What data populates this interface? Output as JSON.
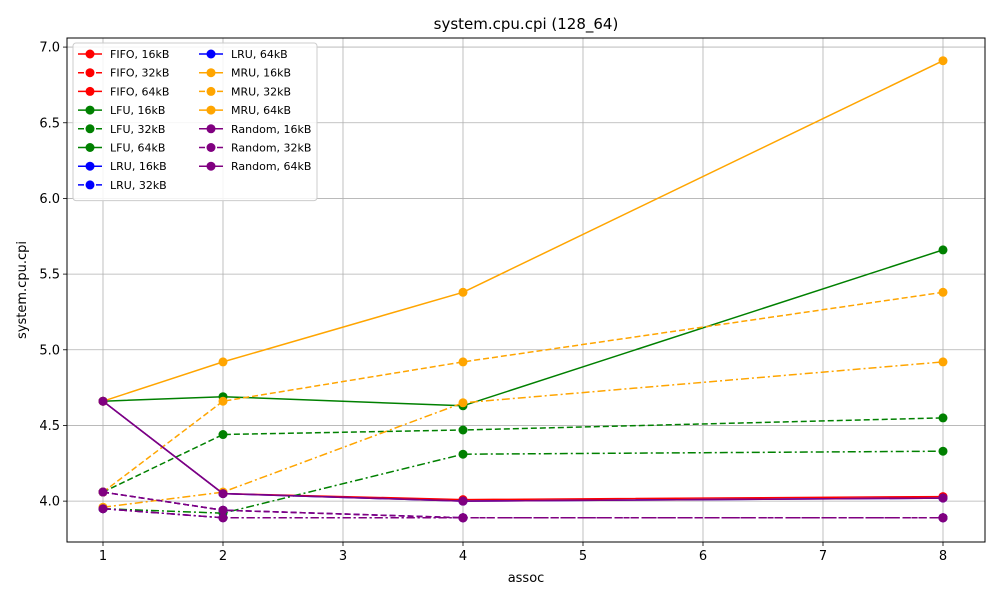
{
  "chart_data": {
    "type": "line",
    "title": "system.cpu.cpi (128_64)",
    "xlabel": "assoc",
    "ylabel": "system.cpu.cpi",
    "xlim": [
      0.7,
      8.35
    ],
    "ylim": [
      3.73,
      7.06
    ],
    "xticks": [
      1,
      2,
      3,
      4,
      5,
      6,
      7,
      8
    ],
    "yticks": [
      4.0,
      4.5,
      5.0,
      5.5,
      6.0,
      6.5,
      7.0
    ],
    "ytick_labels": [
      "4.0",
      "4.5",
      "5.0",
      "5.5",
      "6.0",
      "6.5",
      "7.0"
    ],
    "grid": true,
    "legend_position": "top-left",
    "legend_columns": 2,
    "x": [
      1,
      2,
      4,
      8
    ],
    "series": [
      {
        "name": "FIFO, 16kB",
        "color": "#ff0000",
        "dash": "solid",
        "values": [
          4.66,
          4.05,
          4.01,
          4.03
        ]
      },
      {
        "name": "FIFO, 32kB",
        "color": "#ff0000",
        "dash": "dashed",
        "values": [
          4.06,
          3.94,
          3.89,
          3.89
        ]
      },
      {
        "name": "FIFO, 64kB",
        "color": "#ff0000",
        "dash": "dashdot",
        "values": [
          3.95,
          3.89,
          3.89,
          3.89
        ]
      },
      {
        "name": "LFU, 16kB",
        "color": "#008000",
        "dash": "solid",
        "values": [
          4.66,
          4.69,
          4.63,
          5.66
        ]
      },
      {
        "name": "LFU, 32kB",
        "color": "#008000",
        "dash": "dashed",
        "values": [
          4.06,
          4.44,
          4.47,
          4.55
        ]
      },
      {
        "name": "LFU, 64kB",
        "color": "#008000",
        "dash": "dashdot",
        "values": [
          3.95,
          3.92,
          4.31,
          4.33
        ]
      },
      {
        "name": "LRU, 16kB",
        "color": "#0000ff",
        "dash": "solid",
        "values": [
          4.66,
          4.05,
          4.0,
          4.02
        ]
      },
      {
        "name": "LRU, 32kB",
        "color": "#0000ff",
        "dash": "dashed",
        "values": [
          4.06,
          3.94,
          3.89,
          3.89
        ]
      },
      {
        "name": "LRU, 64kB",
        "color": "#0000ff",
        "dash": "dashdot",
        "values": [
          3.95,
          3.89,
          3.89,
          3.89
        ]
      },
      {
        "name": "MRU, 16kB",
        "color": "#ffa500",
        "dash": "solid",
        "values": [
          4.66,
          4.92,
          5.38,
          6.91
        ]
      },
      {
        "name": "MRU, 32kB",
        "color": "#ffa500",
        "dash": "dashed",
        "values": [
          4.06,
          4.66,
          4.92,
          5.38
        ]
      },
      {
        "name": "MRU, 64kB",
        "color": "#ffa500",
        "dash": "dashdot",
        "values": [
          3.96,
          4.06,
          4.65,
          4.92
        ]
      },
      {
        "name": "Random, 16kB",
        "color": "#800080",
        "dash": "solid",
        "values": [
          4.66,
          4.05,
          4.0,
          4.02
        ]
      },
      {
        "name": "Random, 32kB",
        "color": "#800080",
        "dash": "dashed",
        "values": [
          4.06,
          3.94,
          3.89,
          3.89
        ]
      },
      {
        "name": "Random, 64kB",
        "color": "#800080",
        "dash": "dashdot",
        "values": [
          3.95,
          3.89,
          3.89,
          3.89
        ]
      }
    ]
  }
}
